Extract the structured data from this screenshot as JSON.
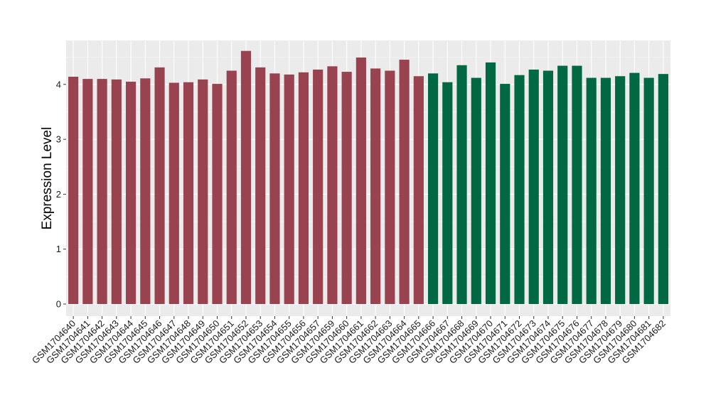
{
  "chart_data": {
    "type": "bar",
    "title": "",
    "xlabel": "",
    "ylabel": "Expression Level",
    "ylim": [
      -0.22,
      4.8
    ],
    "yticks": [
      0,
      1,
      2,
      3,
      4
    ],
    "grid": true,
    "legend": "none",
    "categories": [
      "GSM1704640",
      "GSM1704641",
      "GSM1704642",
      "GSM1704643",
      "GSM1704644",
      "GSM1704645",
      "GSM1704646",
      "GSM1704647",
      "GSM1704648",
      "GSM1704649",
      "GSM1704650",
      "GSM1704651",
      "GSM1704652",
      "GSM1704653",
      "GSM1704654",
      "GSM1704655",
      "GSM1704656",
      "GSM1704657",
      "GSM1704659",
      "GSM1704660",
      "GSM1704661",
      "GSM1704662",
      "GSM1704663",
      "GSM1704664",
      "GSM1704665",
      "GSM1704666",
      "GSM1704667",
      "GSM1704668",
      "GSM1704669",
      "GSM1704670",
      "GSM1704671",
      "GSM1704672",
      "GSM1704673",
      "GSM1704674",
      "GSM1704675",
      "GSM1704676",
      "GSM1704677",
      "GSM1704678",
      "GSM1704679",
      "GSM1704680",
      "GSM1704681",
      "GSM1704682"
    ],
    "values": [
      4.14,
      4.1,
      4.1,
      4.09,
      4.05,
      4.11,
      4.31,
      4.03,
      4.04,
      4.09,
      4.01,
      4.25,
      4.61,
      4.31,
      4.2,
      4.18,
      4.22,
      4.27,
      4.33,
      4.23,
      4.49,
      4.29,
      4.25,
      4.45,
      4.15,
      4.2,
      4.04,
      4.35,
      4.12,
      4.4,
      4.01,
      4.17,
      4.27,
      4.25,
      4.34,
      4.34,
      4.12,
      4.12,
      4.15,
      4.21,
      4.12,
      4.19
    ],
    "groups": [
      0,
      0,
      0,
      0,
      0,
      0,
      0,
      0,
      0,
      0,
      0,
      0,
      0,
      0,
      0,
      0,
      0,
      0,
      0,
      0,
      0,
      0,
      0,
      0,
      0,
      1,
      1,
      1,
      1,
      1,
      1,
      1,
      1,
      1,
      1,
      1,
      1,
      1,
      1,
      1,
      1,
      1
    ],
    "group_colors": [
      "#9a4350",
      "#006944"
    ]
  }
}
